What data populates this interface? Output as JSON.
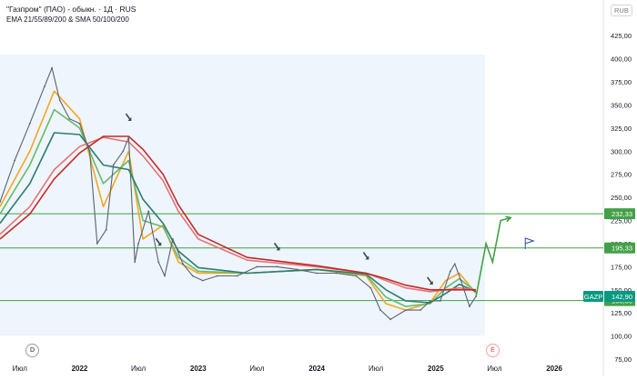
{
  "header": {
    "title": "\"Газпром\" (ПАО) - обыкн. · 1Д · RUS",
    "indicators": "EMA 21/55/89/200 & SMA 50/100/200",
    "currency": "RUB"
  },
  "badges": {
    "left": "D",
    "right": "E"
  },
  "chart_data": {
    "type": "line",
    "title": "\"Газпром\" (ПАО) - обыкн. · 1Д · RUS",
    "xlim": [
      "2021-05-01",
      "2026-06-01"
    ],
    "x_ticks": [
      "Июл",
      "2022",
      "Июл",
      "2023",
      "Июл",
      "2024",
      "Июл",
      "2025",
      "Июл",
      "2026"
    ],
    "x_tick_dates": [
      "2021-07-01",
      "2022-01-01",
      "2022-07-01",
      "2023-01-01",
      "2023-07-01",
      "2024-01-01",
      "2024-07-01",
      "2025-01-01",
      "2025-07-01",
      "2026-01-01"
    ],
    "ylim": [
      75,
      440
    ],
    "y_ticks": [
      "425,00",
      "400,00",
      "375,00",
      "350,00",
      "325,00",
      "300,00",
      "275,00",
      "250,00",
      "225,00",
      "200,00",
      "175,00",
      "150,00",
      "125,00",
      "100,00",
      "75,00"
    ],
    "y_tick_values": [
      425,
      400,
      375,
      350,
      325,
      300,
      275,
      250,
      225,
      200,
      175,
      150,
      125,
      100,
      75
    ],
    "grid": false,
    "price_series": {
      "name": "GAZP",
      "x": [
        "2021-05-01",
        "2021-06-15",
        "2021-08-01",
        "2021-09-15",
        "2021-10-08",
        "2021-11-01",
        "2021-12-01",
        "2022-01-01",
        "2022-02-01",
        "2022-02-24",
        "2022-03-24",
        "2022-04-15",
        "2022-05-15",
        "2022-06-01",
        "2022-06-20",
        "2022-07-01",
        "2022-08-01",
        "2022-09-01",
        "2022-09-20",
        "2022-10-15",
        "2022-11-15",
        "2022-12-15",
        "2023-01-15",
        "2023-03-01",
        "2023-05-01",
        "2023-07-01",
        "2023-09-01",
        "2023-11-01",
        "2024-01-01",
        "2024-03-01",
        "2024-05-01",
        "2024-06-15",
        "2024-07-15",
        "2024-08-15",
        "2024-10-01",
        "2024-11-15",
        "2024-12-15",
        "2025-01-15",
        "2025-02-15",
        "2025-03-01",
        "2025-03-20",
        "2025-04-15",
        "2025-05-05"
      ],
      "values": [
        245,
        290,
        330,
        370,
        390,
        355,
        335,
        330,
        300,
        200,
        215,
        285,
        300,
        315,
        180,
        200,
        235,
        180,
        165,
        205,
        178,
        165,
        160,
        165,
        165,
        175,
        175,
        172,
        168,
        168,
        165,
        152,
        128,
        118,
        128,
        128,
        138,
        138,
        170,
        178,
        160,
        132,
        142.9
      ]
    },
    "moving_averages": [
      {
        "color": "#f5a623",
        "x": [
          "2021-05-01",
          "2021-08-01",
          "2021-10-15",
          "2022-01-01",
          "2022-03-15",
          "2022-06-01",
          "2022-07-15",
          "2022-09-15",
          "2022-11-01",
          "2023-01-01",
          "2023-06-01",
          "2024-01-01",
          "2024-06-01",
          "2024-08-01",
          "2024-10-01",
          "2024-12-15",
          "2025-02-01",
          "2025-03-15",
          "2025-05-05"
        ],
        "values": [
          240,
          300,
          365,
          335,
          240,
          300,
          205,
          220,
          180,
          168,
          168,
          172,
          165,
          135,
          128,
          136,
          160,
          168,
          146
        ]
      },
      {
        "color": "#66bb6a",
        "x": [
          "2021-05-01",
          "2021-08-01",
          "2021-10-15",
          "2022-01-01",
          "2022-03-15",
          "2022-06-01",
          "2022-07-15",
          "2022-09-15",
          "2022-11-01",
          "2023-01-01",
          "2023-06-01",
          "2024-01-01",
          "2024-06-01",
          "2024-08-01",
          "2024-10-01",
          "2024-12-15",
          "2025-02-01",
          "2025-03-15",
          "2025-05-05"
        ],
        "values": [
          232,
          285,
          345,
          325,
          265,
          290,
          225,
          218,
          185,
          170,
          168,
          172,
          166,
          142,
          132,
          135,
          152,
          162,
          148
        ]
      },
      {
        "color": "#2e7d6e",
        "x": [
          "2021-05-01",
          "2021-08-01",
          "2021-10-15",
          "2022-01-01",
          "2022-03-15",
          "2022-06-01",
          "2022-07-15",
          "2022-09-15",
          "2022-11-01",
          "2023-01-01",
          "2023-06-01",
          "2024-01-01",
          "2024-06-01",
          "2024-08-01",
          "2024-10-01",
          "2024-12-15",
          "2025-02-01",
          "2025-03-15",
          "2025-05-05"
        ],
        "values": [
          222,
          265,
          320,
          318,
          285,
          280,
          248,
          222,
          192,
          174,
          168,
          172,
          167,
          150,
          138,
          136,
          146,
          156,
          148
        ]
      },
      {
        "color": "#e57373",
        "x": [
          "2021-05-01",
          "2021-08-01",
          "2021-10-15",
          "2022-01-01",
          "2022-03-15",
          "2022-06-01",
          "2022-07-15",
          "2022-09-15",
          "2022-11-01",
          "2023-01-01",
          "2023-06-01",
          "2024-01-01",
          "2024-06-01",
          "2024-08-01",
          "2024-10-01",
          "2024-12-15",
          "2025-02-01",
          "2025-03-15",
          "2025-05-05"
        ],
        "values": [
          210,
          240,
          280,
          305,
          315,
          310,
          295,
          268,
          235,
          205,
          182,
          175,
          168,
          160,
          152,
          148,
          150,
          152,
          150
        ]
      },
      {
        "color": "#c62828",
        "x": [
          "2021-05-01",
          "2021-08-01",
          "2021-10-15",
          "2022-01-01",
          "2022-03-15",
          "2022-06-01",
          "2022-07-15",
          "2022-09-15",
          "2022-11-01",
          "2023-01-01",
          "2023-06-01",
          "2024-01-01",
          "2024-06-01",
          "2024-08-01",
          "2024-10-01",
          "2024-12-15",
          "2025-02-01",
          "2025-03-15",
          "2025-05-05"
        ],
        "values": [
          205,
          232,
          270,
          298,
          316,
          316,
          302,
          275,
          242,
          210,
          185,
          176,
          168,
          162,
          155,
          150,
          150,
          150,
          150
        ]
      }
    ],
    "horizontal_levels": [
      {
        "value": 232.33,
        "label": "232,33",
        "color": "#43a047"
      },
      {
        "value": 195.33,
        "label": "195,33",
        "color": "#43a047"
      },
      {
        "value": 138.3,
        "label": "138,30",
        "color": "#43a047"
      }
    ],
    "last_price": {
      "label": "GAZP",
      "value": 142.9,
      "value_label": "142,90",
      "color": "#089981"
    },
    "projection": {
      "x": [
        "2025-05-05",
        "2025-06-05",
        "2025-06-25",
        "2025-07-20",
        "2025-08-20"
      ],
      "values": [
        142,
        200,
        180,
        225,
        228
      ],
      "color": "#43a047"
    },
    "target_flag_value": 200,
    "annotation_arrows_x": [
      "2022-06-01",
      "2022-09-01",
      "2023-09-01",
      "2024-06-01",
      "2024-12-15"
    ]
  }
}
